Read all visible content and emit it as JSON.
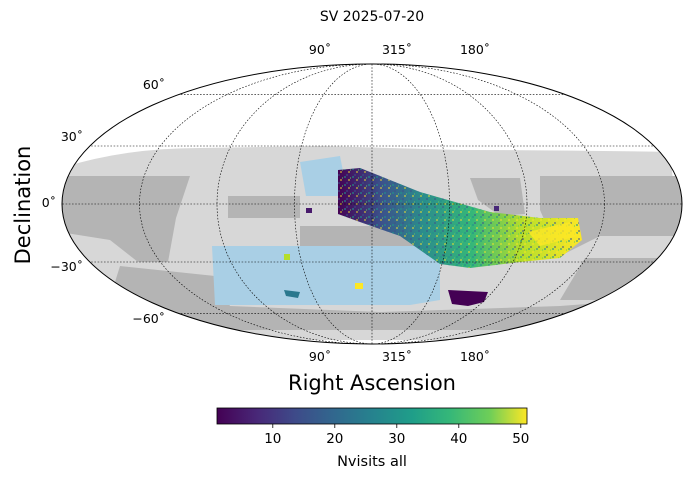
{
  "chart_data": {
    "type": "heatmap",
    "projection": "mollweide",
    "title": "SV 2025-07-20",
    "xlabel": "Right Ascension",
    "ylabel": "Declination",
    "ra_ticks": [
      {
        "value": 90,
        "label": "90˚"
      },
      {
        "value": 315,
        "label": "315˚"
      },
      {
        "value": 180,
        "label": "180˚"
      }
    ],
    "dec_ticks": [
      {
        "value": 60,
        "label": "60˚"
      },
      {
        "value": 30,
        "label": "30˚"
      },
      {
        "value": 0,
        "label": "0˚"
      },
      {
        "value": -30,
        "label": "−30˚"
      },
      {
        "value": -60,
        "label": "−60˚"
      }
    ],
    "colorbar": {
      "label": "Nvisits all",
      "vmin": 1,
      "vmax": 51,
      "ticks": [
        10,
        20,
        30,
        40,
        50
      ],
      "colormap": "viridis",
      "orientation": "horizontal"
    },
    "background_colors": {
      "dark_footprint": "#b4b4b4",
      "light_footprint": "#d7d7d7",
      "planned_field": "#a9cfe5"
    }
  }
}
